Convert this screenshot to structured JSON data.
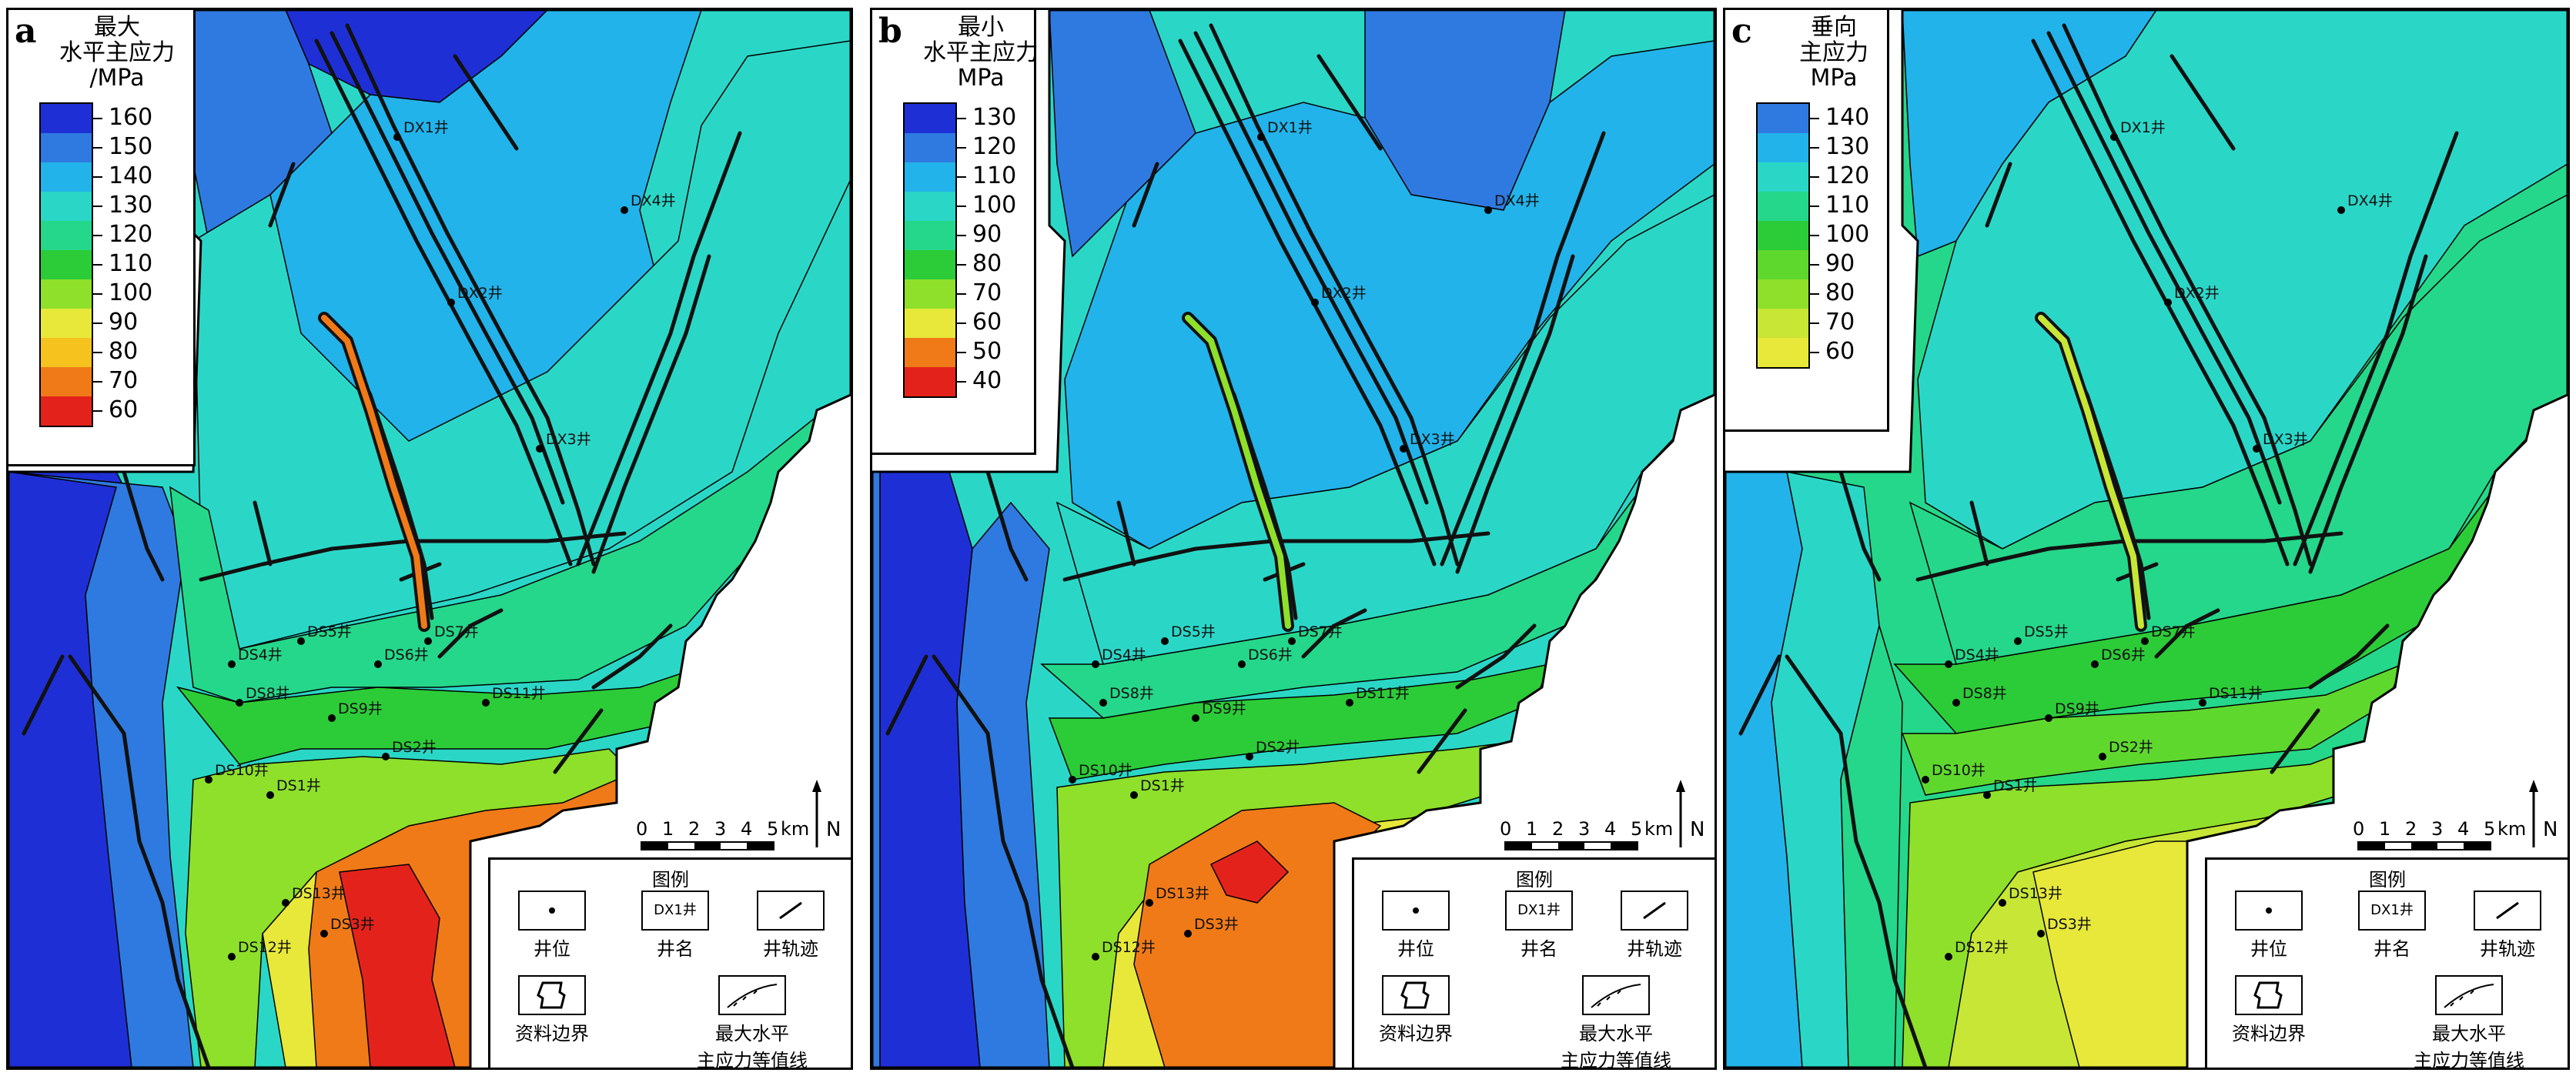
{
  "panels": [
    {
      "id": "a",
      "label": "a",
      "legend_title": [
        "最大",
        "水平主应力",
        "/MPa"
      ],
      "ticks": [
        "160",
        "150",
        "140",
        "130",
        "120",
        "110",
        "100",
        "90",
        "80",
        "70",
        "60"
      ],
      "colors": [
        "#1f2fd6",
        "#2f7ae0",
        "#22b3ea",
        "#2ad7c7",
        "#25d78a",
        "#2ccc38",
        "#8ee02a",
        "#e7e83a",
        "#f5c21e",
        "#f07a18",
        "#e3231b"
      ]
    },
    {
      "id": "b",
      "label": "b",
      "legend_title": [
        "最小",
        "水平主应力",
        "MPa"
      ],
      "ticks": [
        "130",
        "120",
        "110",
        "100",
        "90",
        "80",
        "70",
        "60",
        "50",
        "40"
      ],
      "colors": [
        "#1f2fd6",
        "#2f7ae0",
        "#22b3ea",
        "#2ad7c7",
        "#25d78a",
        "#2ccc38",
        "#8ee02a",
        "#e7e83a",
        "#f07a18",
        "#e3231b"
      ]
    },
    {
      "id": "c",
      "label": "c",
      "legend_title": [
        "垂向",
        "主应力",
        "MPa"
      ],
      "ticks": [
        "140",
        "130",
        "120",
        "110",
        "100",
        "90",
        "80",
        "70",
        "60"
      ],
      "colors": [
        "#2f7ae0",
        "#22b3ea",
        "#2ad7c7",
        "#25d78a",
        "#2ccc38",
        "#5fd82e",
        "#8ee02a",
        "#c7e636",
        "#e7e83a"
      ]
    }
  ],
  "wells": [
    "DX1井",
    "DX2井",
    "DX3井",
    "DX4井",
    "DS5井",
    "DS4井",
    "DS6井",
    "DS7井",
    "DS8井",
    "DS9井",
    "DS11井",
    "DS2井",
    "DS10井",
    "DS1井",
    "DS13井",
    "DS3井",
    "DS12井"
  ],
  "scale": {
    "ticks": [
      "0",
      "1",
      "2",
      "3",
      "4",
      "5"
    ],
    "unit": "km"
  },
  "north": "N",
  "key": {
    "title": "图例",
    "items": [
      "井位",
      "井名",
      "井轨迹",
      "资料边界",
      "最大水平\n主应力等值线"
    ],
    "well_name_sample": "DX1井"
  }
}
